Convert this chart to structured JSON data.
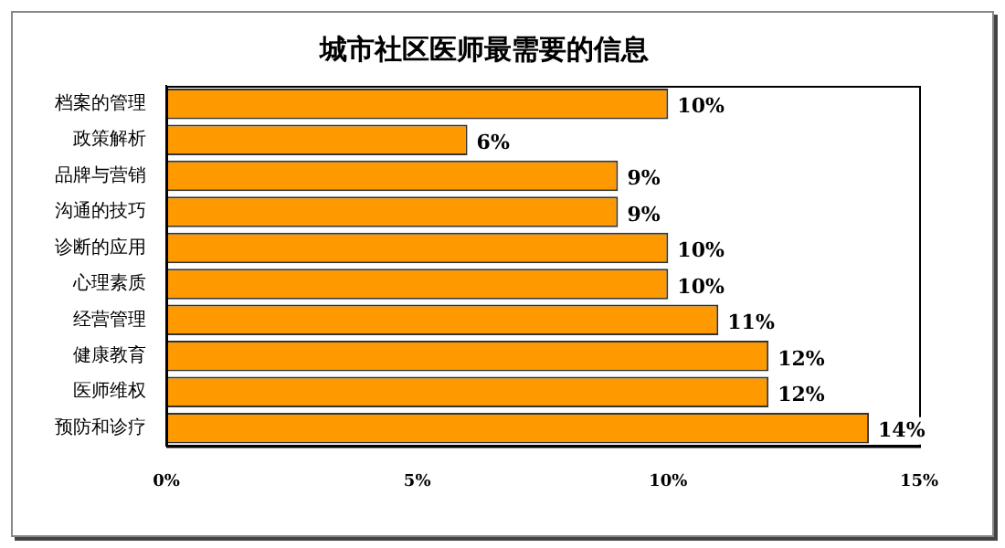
{
  "chart_data": {
    "type": "bar",
    "orientation": "horizontal",
    "title": "城市社区医师最需要的信息",
    "categories": [
      "档案的管理",
      "政策解析",
      "品牌与营销",
      "沟通的技巧",
      "诊断的应用",
      "心理素质",
      "经营管理",
      "健康教育",
      "医师维权",
      "预防和诊疗"
    ],
    "values": [
      10,
      6,
      9,
      9,
      10,
      10,
      11,
      12,
      12,
      14
    ],
    "value_labels": [
      "10%",
      "6%",
      "9%",
      "9%",
      "10%",
      "10%",
      "11%",
      "12%",
      "12%",
      "14%"
    ],
    "color": "#ff9900",
    "xlim": [
      0,
      15
    ],
    "xticks": [
      {
        "value": 0,
        "label": "0%"
      },
      {
        "value": 5,
        "label": "5%"
      },
      {
        "value": 10,
        "label": "10%"
      },
      {
        "value": 15,
        "label": "15%"
      }
    ],
    "grid": false,
    "legend": false
  }
}
